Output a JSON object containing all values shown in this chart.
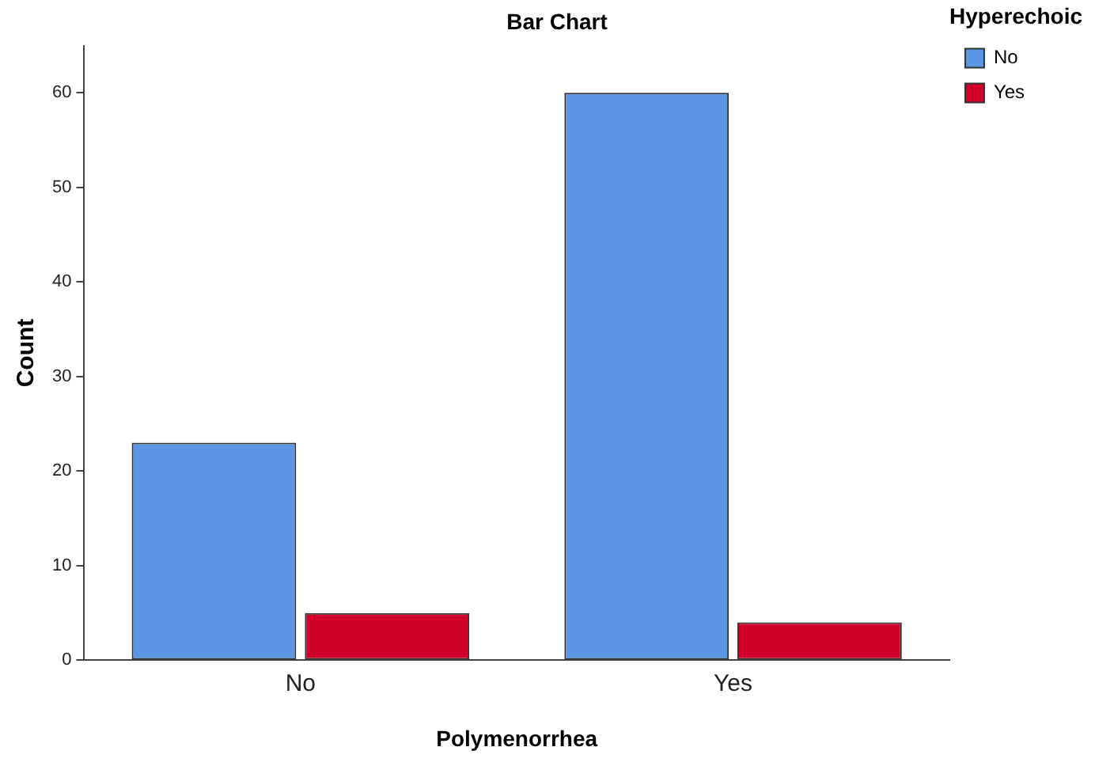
{
  "chart_data": {
    "type": "bar",
    "title": "Bar Chart",
    "xlabel": "Polymenorrhea",
    "ylabel": "Count",
    "legend_title": "Hyperechoic",
    "categories": [
      "No",
      "Yes"
    ],
    "series": [
      {
        "name": "No",
        "color": "#5a96e3",
        "values": [
          23,
          60
        ]
      },
      {
        "name": "Yes",
        "color": "#d1002b",
        "values": [
          5,
          4
        ]
      }
    ],
    "ylim": [
      0,
      65
    ],
    "yticks": [
      0,
      10,
      20,
      30,
      40,
      50,
      60
    ],
    "grid": false,
    "legend": "top right"
  }
}
